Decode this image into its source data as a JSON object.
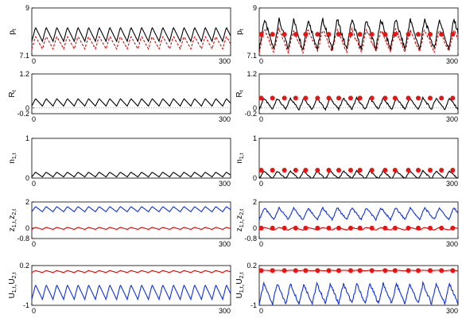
{
  "chart_data": [
    {
      "type": "line",
      "id": "p-left",
      "ylabel_main": "p",
      "ylabel_sub": "t",
      "yticks": [
        "9",
        "7.1"
      ],
      "xticks": [
        "0",
        "300"
      ],
      "ylim": [
        7.1,
        9
      ],
      "xlim": [
        0,
        300
      ],
      "series": [
        {
          "color": "#000000",
          "base": 7.95,
          "amp": 0.28,
          "period": 16
        },
        {
          "color": "#dd0000",
          "dashed": true,
          "base": 7.62,
          "amp": 0.25,
          "period": 16
        }
      ]
    },
    {
      "type": "line",
      "id": "p-right",
      "ylabel_main": "p",
      "ylabel_sub": "t",
      "yticks": [
        "9",
        "7.1"
      ],
      "xticks": [
        "0",
        "300"
      ],
      "ylim": [
        7.1,
        9
      ],
      "xlim": [
        0,
        300
      ],
      "series": [
        {
          "color": "#000000",
          "base": 7.95,
          "amp": 0.6,
          "period": 22
        },
        {
          "color": "#dd0000",
          "dashed": true,
          "base": 7.7,
          "amp": 0.45,
          "period": 22
        }
      ],
      "markers": {
        "color": "#ee1111",
        "y": 7.95,
        "x": [
          3,
          20,
          38,
          55,
          70,
          88,
          105,
          120,
          138,
          152,
          170,
          190,
          205,
          225,
          240,
          258,
          275,
          292
        ]
      }
    },
    {
      "type": "line",
      "id": "R-left",
      "ylabel_main": "R",
      "ylabel_sub": "t",
      "yticks": [
        "1.2",
        "0",
        "-0.2"
      ],
      "xticks": [
        "0",
        "300"
      ],
      "ylim": [
        -0.2,
        1.2
      ],
      "xlim": [
        0,
        300
      ],
      "zero_line": true,
      "series": [
        {
          "color": "#000000",
          "base": 0.2,
          "amp": 0.13,
          "period": 16
        }
      ]
    },
    {
      "type": "line",
      "id": "R-right",
      "ylabel_main": "R",
      "ylabel_sub": "t",
      "yticks": [
        "1.2",
        "0",
        "-0.2"
      ],
      "xticks": [
        "0",
        "300"
      ],
      "ylim": [
        -0.2,
        1.2
      ],
      "xlim": [
        0,
        300
      ],
      "zero_line": true,
      "series": [
        {
          "color": "#000000",
          "base": 0.15,
          "amp": 0.2,
          "period": 20
        }
      ],
      "markers": {
        "color": "#ee1111",
        "y": 0.35,
        "x": [
          3,
          20,
          38,
          55,
          70,
          88,
          105,
          120,
          138,
          152,
          170,
          190,
          205,
          225,
          240,
          258,
          275,
          292
        ]
      }
    },
    {
      "type": "line",
      "id": "n-left",
      "ylabel_main": "n",
      "ylabel_sub": "1,t",
      "yticks": [
        "1",
        "0"
      ],
      "xticks": [
        "0",
        "300"
      ],
      "ylim": [
        0,
        1
      ],
      "xlim": [
        0,
        300
      ],
      "series": [
        {
          "color": "#000000",
          "base": 0.09,
          "amp": 0.06,
          "period": 16
        }
      ]
    },
    {
      "type": "line",
      "id": "n-right",
      "ylabel_main": "n",
      "ylabel_sub": "1,t",
      "yticks": [
        "1",
        "0"
      ],
      "xticks": [
        "0",
        "300"
      ],
      "ylim": [
        0,
        1
      ],
      "xlim": [
        0,
        300
      ],
      "series": [
        {
          "color": "#000000",
          "base": 0.08,
          "amp": 0.1,
          "period": 20
        }
      ],
      "markers": {
        "color": "#ee1111",
        "y": 0.2,
        "x": [
          3,
          20,
          38,
          55,
          70,
          88,
          105,
          120,
          138,
          152,
          170,
          190,
          205,
          225,
          240,
          258,
          275,
          292
        ]
      }
    },
    {
      "type": "line",
      "id": "z-left",
      "ylabel_main": "z",
      "ylabel_sub": "1,t",
      "ylabel_main2": "z",
      "ylabel_sub2": "2,t",
      "yticks": [
        "2",
        "0",
        "-0.8"
      ],
      "xticks": [
        "0",
        "300"
      ],
      "ylim": [
        -0.8,
        2
      ],
      "xlim": [
        0,
        300
      ],
      "series": [
        {
          "color": "#1030e0",
          "base": 1.45,
          "amp": 0.2,
          "period": 16
        },
        {
          "color": "#dd0000",
          "base": -0.02,
          "amp": 0.08,
          "period": 16
        }
      ]
    },
    {
      "type": "line",
      "id": "z-right",
      "ylabel_main": "z",
      "ylabel_sub": "1,t",
      "ylabel_main2": "z",
      "ylabel_sub2": "2,t",
      "yticks": [
        "2",
        "0",
        "-0.8"
      ],
      "xticks": [
        "0",
        "300"
      ],
      "ylim": [
        -0.8,
        2
      ],
      "xlim": [
        0,
        300
      ],
      "series": [
        {
          "color": "#1030e0",
          "base": 1.1,
          "amp": 0.45,
          "period": 22
        },
        {
          "color": "#dd0000",
          "base": -0.05,
          "amp": 0.1,
          "period": 22
        }
      ],
      "markers": {
        "color": "#ee1111",
        "y": 0.0,
        "x": [
          3,
          20,
          38,
          55,
          70,
          88,
          105,
          120,
          138,
          152,
          170,
          190,
          205,
          225,
          240,
          258,
          275,
          292
        ]
      }
    },
    {
      "type": "line",
      "id": "U-left",
      "ylabel_main": "U",
      "ylabel_sub": "1,t",
      "ylabel_main2": "U",
      "ylabel_sub2": "2,t",
      "yticks": [
        "0.2",
        "-1"
      ],
      "xticks": [
        "0",
        "300"
      ],
      "ylim": [
        -1,
        0.2
      ],
      "xlim": [
        0,
        300
      ],
      "series": [
        {
          "color": "#dd0000",
          "base": 0.02,
          "amp": 0.03,
          "period": 16
        },
        {
          "color": "#1030e0",
          "base": -0.6,
          "amp": 0.22,
          "period": 16
        }
      ]
    },
    {
      "type": "line",
      "id": "U-right",
      "ylabel_main": "U",
      "ylabel_sub": "1,t",
      "ylabel_main2": "U",
      "ylabel_sub2": "2,t",
      "yticks": [
        "0.2",
        "-1"
      ],
      "xticks": [
        "0",
        "300"
      ],
      "ylim": [
        -1,
        0.2
      ],
      "xlim": [
        0,
        300
      ],
      "series": [
        {
          "color": "#dd0000",
          "base": 0.05,
          "amp": 0.01,
          "period": 20
        },
        {
          "color": "#1030e0",
          "base": -0.65,
          "amp": 0.3,
          "period": 20
        }
      ],
      "markers": {
        "color": "#ee1111",
        "y": 0.05,
        "x": [
          3,
          20,
          38,
          55,
          70,
          88,
          105,
          120,
          138,
          152,
          170,
          190,
          205,
          225,
          240,
          258,
          275,
          292
        ]
      }
    }
  ]
}
